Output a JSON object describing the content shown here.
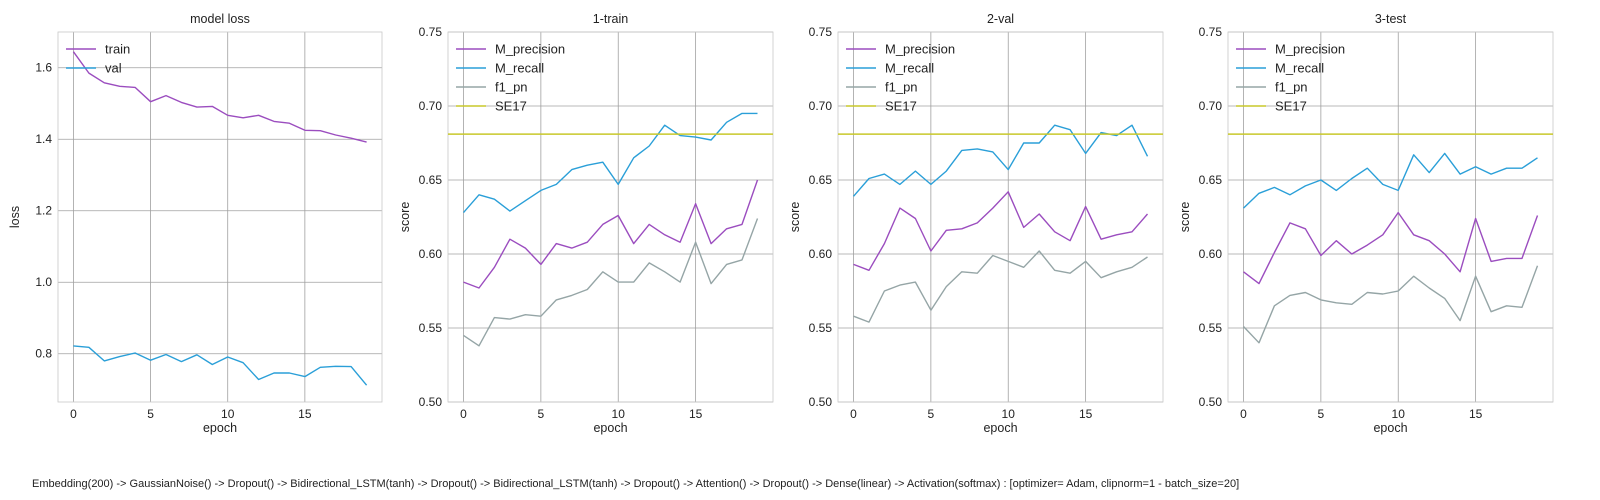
{
  "colors": {
    "M_precision": "#9b4dbf",
    "M_recall": "#2a9fd8",
    "f1_pn": "#95a5a6",
    "SE17": "#c8c82a",
    "train": "#9b4dbf",
    "val": "#2a9fd8",
    "grid": "#a0a0a0"
  },
  "caption": "Embedding(200) -> GaussianNoise() -> Dropout() -> Bidirectional_LSTM(tanh) -> Dropout() -> Bidirectional_LSTM(tanh) -> Dropout() -> Attention() -> Dropout() -> Dense(linear) -> Activation(softmax) : [optimizer= Adam, clipnorm=1 - batch_size=20]",
  "chart_data": [
    {
      "type": "line",
      "title": "model loss",
      "xlabel": "epoch",
      "ylabel": "loss",
      "xlim": [
        -1,
        20
      ],
      "ylim": [
        0.665,
        1.7
      ],
      "xticks": [
        0,
        5,
        10,
        15
      ],
      "yticks": [
        0.8,
        1.0,
        1.2,
        1.4,
        1.6
      ],
      "ytick_labels": [
        "0.8",
        "1.0",
        "1.2",
        "1.4",
        "1.6"
      ],
      "grid": true,
      "legend": "top-left",
      "x": [
        0,
        1,
        2,
        3,
        4,
        5,
        6,
        7,
        8,
        9,
        10,
        11,
        12,
        13,
        14,
        15,
        16,
        17,
        18,
        19
      ],
      "series": [
        {
          "name": "train",
          "color_key": "train",
          "values": [
            1.645,
            1.585,
            1.558,
            1.548,
            1.545,
            1.505,
            1.522,
            1.503,
            1.49,
            1.492,
            1.467,
            1.46,
            1.467,
            1.45,
            1.445,
            1.425,
            1.424,
            1.412,
            1.403,
            1.392
          ]
        },
        {
          "name": "val",
          "color_key": "val",
          "values": [
            0.822,
            0.818,
            0.78,
            0.792,
            0.802,
            0.782,
            0.798,
            0.778,
            0.797,
            0.77,
            0.791,
            0.775,
            0.728,
            0.746,
            0.746,
            0.736,
            0.762,
            0.765,
            0.764,
            0.712
          ]
        }
      ]
    },
    {
      "type": "line",
      "title": "1-train",
      "xlabel": "epoch",
      "ylabel": "score",
      "xlim": [
        -1,
        20
      ],
      "ylim": [
        0.5,
        0.75
      ],
      "xticks": [
        0,
        5,
        10,
        15
      ],
      "yticks": [
        0.5,
        0.55,
        0.6,
        0.65,
        0.7,
        0.75
      ],
      "ytick_labels": [
        "0.50",
        "0.55",
        "0.60",
        "0.65",
        "0.70",
        "0.75"
      ],
      "grid": true,
      "legend": "top-left",
      "x": [
        0,
        1,
        2,
        3,
        4,
        5,
        6,
        7,
        8,
        9,
        10,
        11,
        12,
        13,
        14,
        15,
        16,
        17,
        18,
        19
      ],
      "series": [
        {
          "name": "M_precision",
          "color_key": "M_precision",
          "values": [
            0.581,
            0.577,
            0.591,
            0.61,
            0.604,
            0.593,
            0.607,
            0.604,
            0.608,
            0.62,
            0.626,
            0.607,
            0.62,
            0.613,
            0.608,
            0.634,
            0.607,
            0.617,
            0.62,
            0.65
          ]
        },
        {
          "name": "M_recall",
          "color_key": "M_recall",
          "values": [
            0.628,
            0.64,
            0.637,
            0.629,
            0.636,
            0.643,
            0.647,
            0.657,
            0.66,
            0.662,
            0.647,
            0.665,
            0.673,
            0.687,
            0.68,
            0.679,
            0.677,
            0.689,
            0.695,
            0.695
          ]
        },
        {
          "name": "f1_pn",
          "color_key": "f1_pn",
          "values": [
            0.545,
            0.538,
            0.557,
            0.556,
            0.559,
            0.558,
            0.569,
            0.572,
            0.576,
            0.588,
            0.581,
            0.581,
            0.594,
            0.588,
            0.581,
            0.608,
            0.58,
            0.593,
            0.596,
            0.624
          ]
        },
        {
          "name": "SE17",
          "color_key": "SE17",
          "constant": 0.681
        }
      ]
    },
    {
      "type": "line",
      "title": "2-val",
      "xlabel": "epoch",
      "ylabel": "score",
      "xlim": [
        -1,
        20
      ],
      "ylim": [
        0.5,
        0.75
      ],
      "xticks": [
        0,
        5,
        10,
        15
      ],
      "yticks": [
        0.5,
        0.55,
        0.6,
        0.65,
        0.7,
        0.75
      ],
      "ytick_labels": [
        "0.50",
        "0.55",
        "0.60",
        "0.65",
        "0.70",
        "0.75"
      ],
      "grid": true,
      "legend": "top-left",
      "x": [
        0,
        1,
        2,
        3,
        4,
        5,
        6,
        7,
        8,
        9,
        10,
        11,
        12,
        13,
        14,
        15,
        16,
        17,
        18,
        19
      ],
      "series": [
        {
          "name": "M_precision",
          "color_key": "M_precision",
          "values": [
            0.593,
            0.589,
            0.607,
            0.631,
            0.624,
            0.602,
            0.616,
            0.617,
            0.621,
            0.631,
            0.642,
            0.618,
            0.627,
            0.615,
            0.609,
            0.632,
            0.61,
            0.613,
            0.615,
            0.627
          ]
        },
        {
          "name": "M_recall",
          "color_key": "M_recall",
          "values": [
            0.639,
            0.651,
            0.654,
            0.647,
            0.656,
            0.647,
            0.656,
            0.67,
            0.671,
            0.669,
            0.657,
            0.675,
            0.675,
            0.687,
            0.684,
            0.668,
            0.682,
            0.68,
            0.687,
            0.666
          ]
        },
        {
          "name": "f1_pn",
          "color_key": "f1_pn",
          "values": [
            0.558,
            0.554,
            0.575,
            0.579,
            0.581,
            0.562,
            0.578,
            0.588,
            0.587,
            0.599,
            0.595,
            0.591,
            0.602,
            0.589,
            0.587,
            0.595,
            0.584,
            0.588,
            0.591,
            0.598
          ]
        },
        {
          "name": "SE17",
          "color_key": "SE17",
          "constant": 0.681
        }
      ]
    },
    {
      "type": "line",
      "title": "3-test",
      "xlabel": "epoch",
      "ylabel": "score",
      "xlim": [
        -1,
        20
      ],
      "ylim": [
        0.5,
        0.75
      ],
      "xticks": [
        0,
        5,
        10,
        15
      ],
      "yticks": [
        0.5,
        0.55,
        0.6,
        0.65,
        0.7,
        0.75
      ],
      "ytick_labels": [
        "0.50",
        "0.55",
        "0.60",
        "0.65",
        "0.70",
        "0.75"
      ],
      "grid": true,
      "legend": "top-left",
      "x": [
        0,
        1,
        2,
        3,
        4,
        5,
        6,
        7,
        8,
        9,
        10,
        11,
        12,
        13,
        14,
        15,
        16,
        17,
        18,
        19
      ],
      "series": [
        {
          "name": "M_precision",
          "color_key": "M_precision",
          "values": [
            0.588,
            0.58,
            0.601,
            0.621,
            0.617,
            0.599,
            0.609,
            0.6,
            0.606,
            0.613,
            0.628,
            0.613,
            0.609,
            0.6,
            0.588,
            0.624,
            0.595,
            0.597,
            0.597,
            0.626
          ]
        },
        {
          "name": "M_recall",
          "color_key": "M_recall",
          "values": [
            0.631,
            0.641,
            0.645,
            0.64,
            0.646,
            0.65,
            0.643,
            0.651,
            0.658,
            0.647,
            0.643,
            0.667,
            0.655,
            0.668,
            0.654,
            0.659,
            0.654,
            0.658,
            0.658,
            0.665
          ]
        },
        {
          "name": "f1_pn",
          "color_key": "f1_pn",
          "values": [
            0.551,
            0.54,
            0.565,
            0.572,
            0.574,
            0.569,
            0.567,
            0.566,
            0.574,
            0.573,
            0.575,
            0.585,
            0.577,
            0.57,
            0.555,
            0.585,
            0.561,
            0.565,
            0.564,
            0.592
          ]
        },
        {
          "name": "SE17",
          "color_key": "SE17",
          "constant": 0.681
        }
      ]
    }
  ]
}
